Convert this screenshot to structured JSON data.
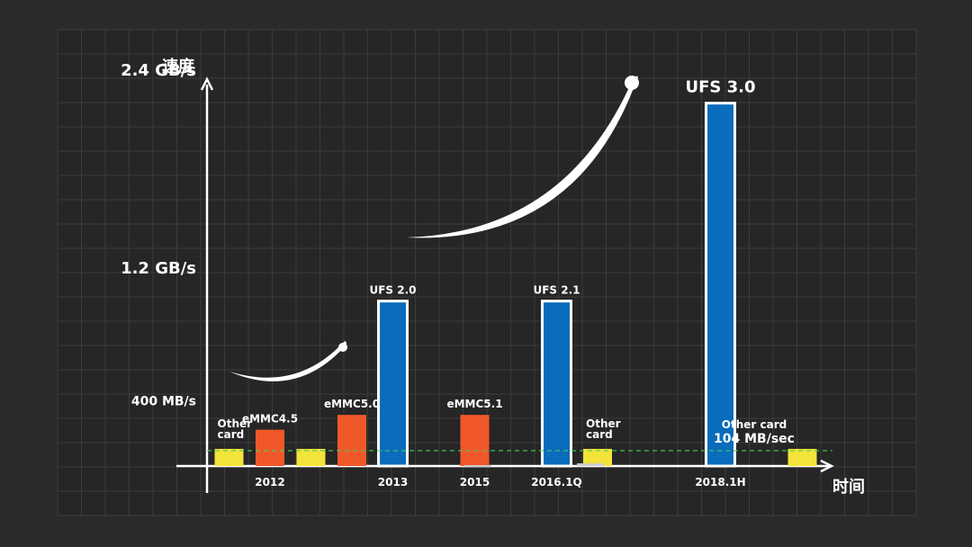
{
  "chart_data": {
    "type": "bar",
    "title": "",
    "ylabel": "速度",
    "xlabel": "时间",
    "ylim": [
      0,
      2400
    ],
    "y_unit": "MB/s",
    "y_ticks": [
      {
        "value": 400,
        "label": "400 MB/s"
      },
      {
        "value": 1200,
        "label": "1.2 GB/s"
      },
      {
        "value": 2400,
        "label": "2.4 GB/s"
      }
    ],
    "year_labels": [
      {
        "label": "2012",
        "slot": 2
      },
      {
        "label": "2013",
        "slot": 5
      },
      {
        "label": "2015",
        "slot": 7
      },
      {
        "label": "2016.1Q",
        "slot": 9
      },
      {
        "label": "2018.1H",
        "slot": 13
      }
    ],
    "bars": [
      {
        "slot": 1,
        "label": "Other card",
        "value": 104,
        "color": "#f3e33a"
      },
      {
        "slot": 2,
        "label": "eMMC4.5",
        "value": 220,
        "color": "#f0582a"
      },
      {
        "slot": 3,
        "label": "",
        "value": 104,
        "color": "#f3e33a"
      },
      {
        "slot": 4,
        "label": "eMMC5.0",
        "value": 310,
        "color": "#f0582a"
      },
      {
        "slot": 5,
        "label": "UFS 2.0",
        "value": 1000,
        "color": "#0a6cbc",
        "outline": true
      },
      {
        "slot": 7,
        "label": "eMMC5.1",
        "value": 310,
        "color": "#f0582a"
      },
      {
        "slot": 9,
        "label": "UFS 2.1",
        "value": 1000,
        "color": "#0a6cbc",
        "outline": true
      },
      {
        "slot": 10,
        "label": "Other card",
        "value": 104,
        "color": "#f3e33a"
      },
      {
        "slot": 13,
        "label": "UFS  3.0",
        "value": 2200,
        "color": "#0a6cbc",
        "outline": true
      },
      {
        "slot": 15,
        "label": "",
        "value": 104,
        "color": "#f3e33a"
      }
    ],
    "reference_line": {
      "value": 104,
      "label_line1": "Other card",
      "label_line2": "104 MB/sec",
      "color": "#3fd05a"
    }
  },
  "colors": {
    "background": "#2a2a2a",
    "grid": "#3c3c3c",
    "axis": "#ffffff"
  }
}
